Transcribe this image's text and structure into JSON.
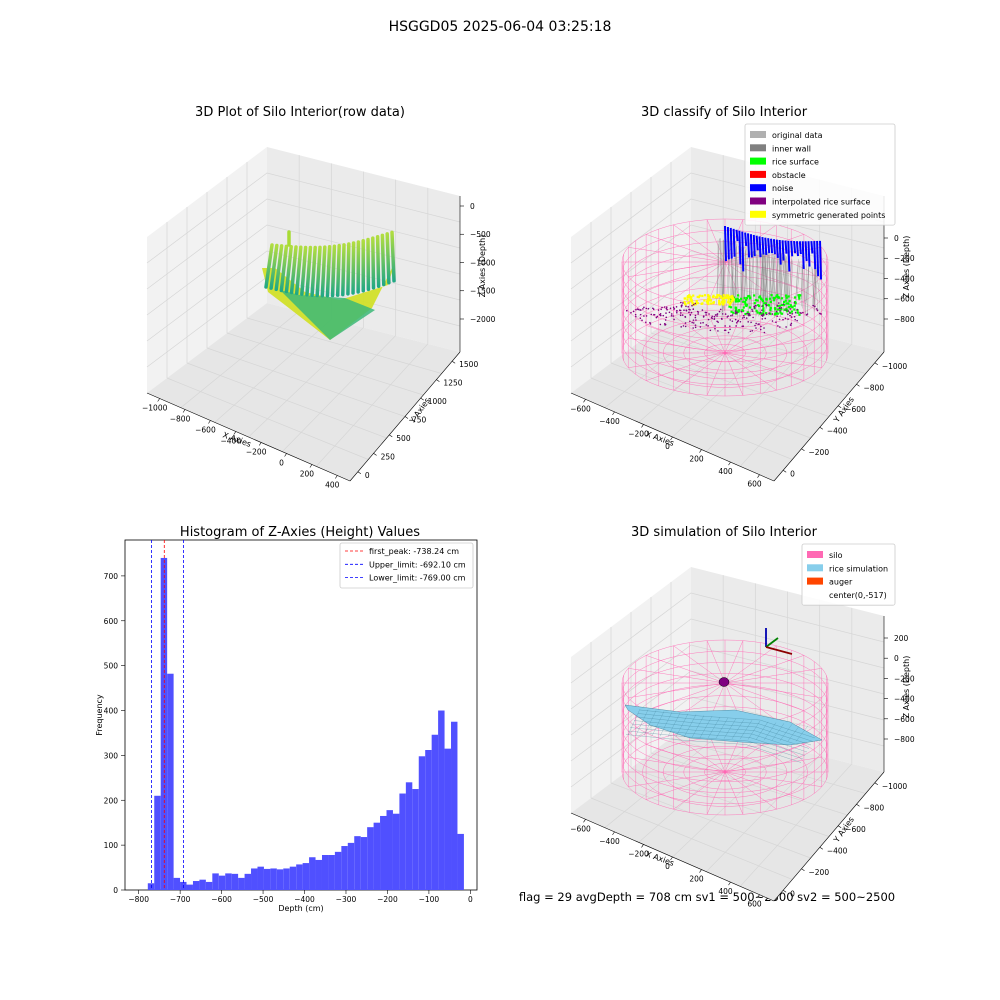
{
  "figure": {
    "suptitle": "HSGGD05 2025-06-04 03:25:18",
    "footer": "flag = 29  avgDepth = 708 cm  sv1 = 500~2500  sv2 = 500~2500"
  },
  "colors": {
    "hist_bar": "#5050ff",
    "first_peak": "#ff0000",
    "limit": "#0000ff",
    "silo": "#ff69b4",
    "rice_sim": "#87ceeb",
    "auger": "#ff4500",
    "rice_surface": "#00ff00",
    "noise": "#0000ff",
    "interp": "#800080",
    "symmetric": "#ffff00",
    "original": "#b0b0b0",
    "inner_wall": "#808080"
  },
  "chart_data": [
    {
      "type": "scatter3d",
      "title": "3D Plot of Silo Interior(row data)",
      "xlabel": "X Axies",
      "ylabel": "Y Axies",
      "zlabel": "Z Axies (Depth)",
      "xticks": [
        "−1000",
        "−800",
        "−600",
        "−400",
        "−200",
        "0",
        "200",
        "400"
      ],
      "yticks": [
        "0",
        "250",
        "500",
        "750",
        "1000",
        "1250",
        "1500"
      ],
      "zticks": [
        "0",
        "−500",
        "−1000",
        "−1500",
        "−2000"
      ]
    },
    {
      "type": "scatter3d",
      "title": "3D classify of Silo Interior",
      "xlabel": "X Axies",
      "ylabel": "Y Axies",
      "zlabel": "Z Axies (Depth)",
      "xticks": [
        "−600",
        "−400",
        "−200",
        "0",
        "200",
        "400",
        "600"
      ],
      "yticks": [
        "0",
        "−200",
        "−400",
        "−600",
        "−800",
        "−1000"
      ],
      "zticks": [
        "0",
        "−200",
        "−400",
        "−600",
        "−800"
      ],
      "legend": [
        "original data",
        "inner wall",
        "rice surface",
        "obstacle",
        "noise",
        "interpolated rice surface",
        "symmetric generated points"
      ],
      "legend_colors": [
        "#b0b0b0",
        "#808080",
        "#00ff00",
        "#ff0000",
        "#0000ff",
        "#800080",
        "#ffff00"
      ],
      "legend_position": "top-right"
    },
    {
      "type": "bar",
      "title": "Histogram of Z-Axies (Height) Values",
      "xlabel": "Depth (cm)",
      "ylabel": "Frequency",
      "xlim": [
        -800,
        0
      ],
      "ylim": [
        0,
        780
      ],
      "bin_start": -778,
      "bin_width": 15.56,
      "values": [
        15,
        210,
        740,
        482,
        27,
        18,
        12,
        20,
        23,
        18,
        37,
        32,
        37,
        36,
        27,
        36,
        48,
        52,
        47,
        48,
        46,
        48,
        52,
        57,
        60,
        73,
        67,
        78,
        78,
        85,
        98,
        105,
        120,
        118,
        140,
        150,
        165,
        178,
        170,
        215,
        240,
        225,
        298,
        312,
        346,
        400,
        315,
        375,
        125
      ],
      "xticks": [
        -800,
        -700,
        -600,
        -500,
        -400,
        -300,
        -200,
        -100,
        0
      ],
      "xtick_labels": [
        "−800",
        "−700",
        "−600",
        "−500",
        "−400",
        "−300",
        "−200",
        "−100",
        "0"
      ],
      "yticks": [
        0,
        100,
        200,
        300,
        400,
        500,
        600,
        700
      ],
      "lines": [
        {
          "label": "first_peak: -738.24 cm",
          "x": -738.24,
          "kind": "first_peak"
        },
        {
          "label": "Upper_limit: -692.10 cm",
          "x": -692.1,
          "kind": "limit"
        },
        {
          "label": "Lower_limit: -769.00 cm",
          "x": -769.0,
          "kind": "limit"
        }
      ],
      "legend_position": "top-right"
    },
    {
      "type": "surface3d",
      "title": "3D simulation of Silo Interior",
      "xlabel": "X Axies",
      "ylabel": "Y Axies",
      "zlabel": "Z Axies (Depth)",
      "xticks": [
        "−600",
        "−400",
        "−200",
        "0",
        "200",
        "400",
        "600"
      ],
      "yticks": [
        "0",
        "−200",
        "−400",
        "−600",
        "−800",
        "−1000"
      ],
      "zticks": [
        "200",
        "0",
        "−200",
        "−400",
        "−600",
        "−800"
      ],
      "legend": [
        "silo",
        "rice simulation",
        "auger",
        "center(0,-517)"
      ],
      "legend_colors": [
        "#ff69b4",
        "#87ceeb",
        "#ff4500",
        ""
      ],
      "legend_position": "top-right"
    }
  ]
}
